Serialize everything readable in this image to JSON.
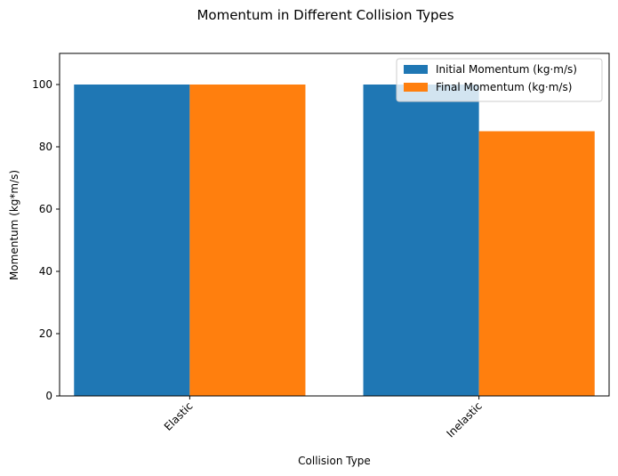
{
  "chart_data": {
    "type": "bar",
    "title": "Momentum in Different Collision Types",
    "xlabel": "Collision Type",
    "ylabel": "Momentum (kg*m/s)",
    "categories": [
      "Elastic",
      "Inelastic"
    ],
    "series": [
      {
        "name": "Initial Momentum (kg·m/s)",
        "values": [
          100,
          100
        ],
        "color": "#1f77b4"
      },
      {
        "name": "Final Momentum (kg·m/s)",
        "values": [
          100,
          85
        ],
        "color": "#ff7f0e"
      }
    ],
    "ylim": [
      0,
      110
    ],
    "yticks": [
      0,
      20,
      40,
      60,
      80,
      100
    ],
    "grid": false,
    "legend_position": "top-right",
    "xtick_rotation": 45
  }
}
